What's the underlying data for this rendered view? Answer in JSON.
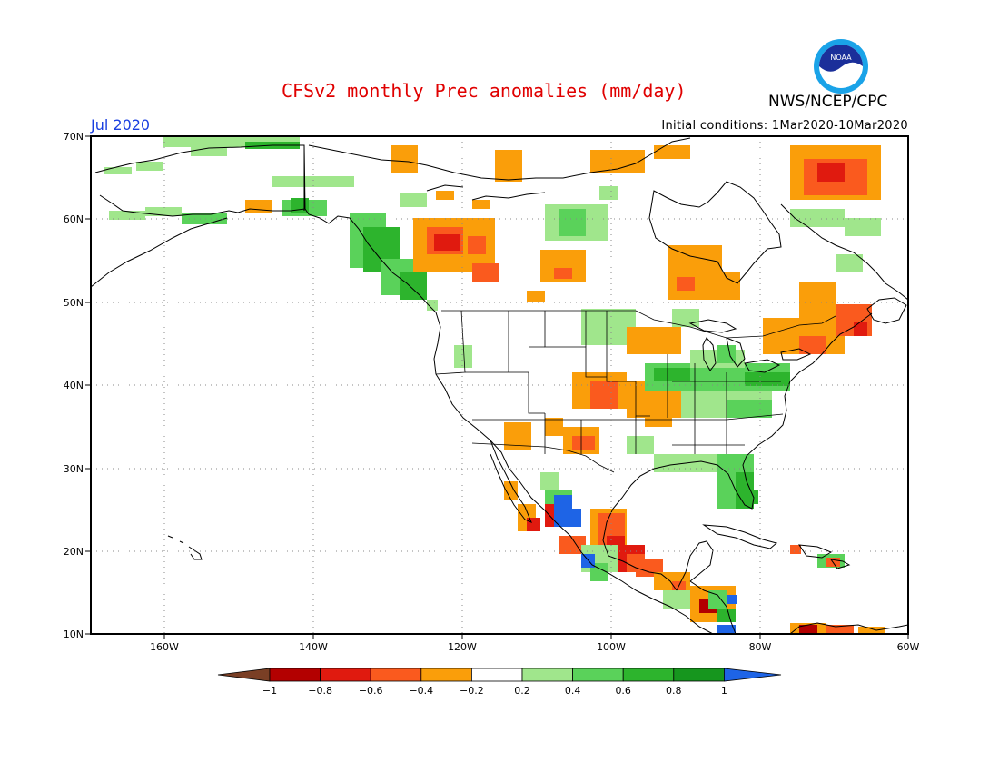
{
  "header": {
    "title": "CFSv2 monthly Prec anomalies (mm/day)",
    "month": "Jul 2020",
    "initial_conditions": "Initial conditions: 1Mar2020-10Mar2020",
    "agency": "NWS/NCEP/CPC",
    "logo_text": "NOAA"
  },
  "axes": {
    "lat_labels": [
      "70N",
      "60N",
      "50N",
      "40N",
      "30N",
      "20N",
      "10N"
    ],
    "lon_labels": [
      "160W",
      "140W",
      "120W",
      "100W",
      "80W",
      "60W"
    ]
  },
  "colorbar": {
    "labels": [
      "−1",
      "−0.8",
      "−0.6",
      "−0.4",
      "−0.2",
      "0.2",
      "0.4",
      "0.6",
      "0.8",
      "1"
    ],
    "colors": [
      "#7a3f25",
      "#b30000",
      "#e01a0f",
      "#fa5a1e",
      "#fa9e0a",
      "#ffffff",
      "#a0e68c",
      "#5ad25a",
      "#2db42d",
      "#16961e",
      "#1e64e6"
    ]
  },
  "colors": {
    "title": "#e00000",
    "month": "#1a3fe0"
  }
}
